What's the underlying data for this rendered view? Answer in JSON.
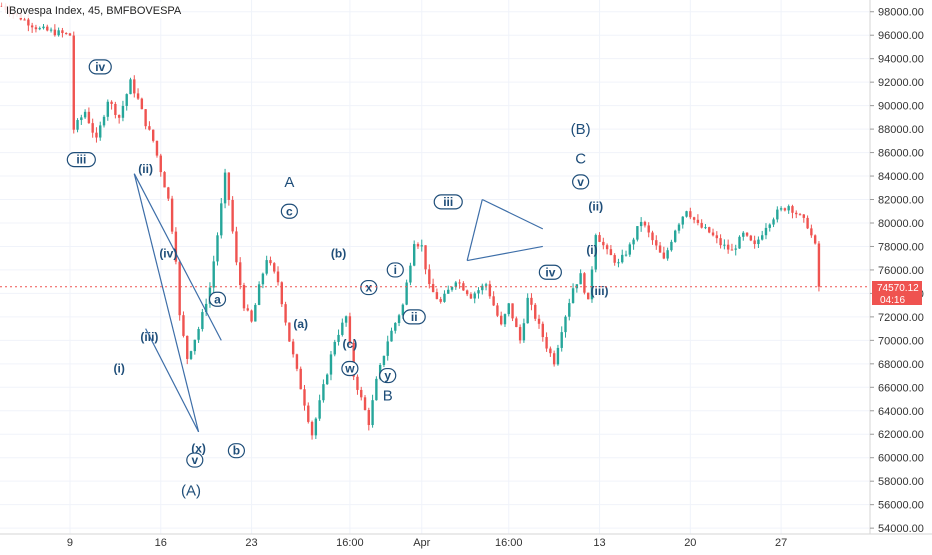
{
  "header": {
    "title": "IBovespa Index, 45, BMFBOVESPA"
  },
  "price_badge": {
    "price": "74570.12",
    "countdown": "04:16"
  },
  "colors": {
    "up": "#26a69a",
    "down": "#ef5350",
    "wave": "#1f4e79",
    "line": "#3d6ea8",
    "price_line": "#ef5350"
  },
  "chart_data": {
    "type": "candlestick",
    "x_ticks": [
      "9",
      "16",
      "23",
      "16:00",
      "Apr",
      "16:00",
      "13",
      "20",
      "27"
    ],
    "x_tick_slots": [
      18,
      42,
      66,
      92,
      111,
      134,
      158,
      182,
      206
    ],
    "y_ticks": [
      98000,
      96000,
      94000,
      92000,
      90000,
      88000,
      86000,
      84000,
      82000,
      80000,
      78000,
      76000,
      74000,
      72000,
      70000,
      68000,
      66000,
      64000,
      62000,
      60000,
      58000,
      56000,
      54000
    ],
    "ylim": [
      53500,
      99000
    ],
    "slots": 230,
    "last_price": 74570.12,
    "path": [
      [
        0,
        98500
      ],
      [
        10,
        96500
      ],
      [
        18,
        96000
      ],
      [
        19,
        88000
      ],
      [
        22,
        89500
      ],
      [
        25,
        87000
      ],
      [
        28,
        90500
      ],
      [
        31,
        89000
      ],
      [
        34,
        92000
      ],
      [
        36,
        90500
      ],
      [
        38,
        88500
      ],
      [
        40,
        87000
      ],
      [
        42,
        84500
      ],
      [
        44,
        82000
      ],
      [
        46,
        77000
      ],
      [
        47,
        72000
      ],
      [
        49,
        68500
      ],
      [
        52,
        71000
      ],
      [
        55,
        74500
      ],
      [
        57,
        79000
      ],
      [
        59,
        84000
      ],
      [
        60,
        82000
      ],
      [
        62,
        76500
      ],
      [
        64,
        73000
      ],
      [
        66,
        71500
      ],
      [
        68,
        74500
      ],
      [
        70,
        77000
      ],
      [
        73,
        75000
      ],
      [
        76,
        70000
      ],
      [
        79,
        66000
      ],
      [
        82,
        62000
      ],
      [
        85,
        66000
      ],
      [
        88,
        70000
      ],
      [
        91,
        72000
      ],
      [
        93,
        67000
      ],
      [
        95,
        65000
      ],
      [
        97,
        63000
      ],
      [
        99,
        66500
      ],
      [
        102,
        70000
      ],
      [
        106,
        73000
      ],
      [
        109,
        78500
      ],
      [
        111,
        78000
      ],
      [
        113,
        74500
      ],
      [
        116,
        73200
      ],
      [
        120,
        75200
      ],
      [
        124,
        73800
      ],
      [
        128,
        74800
      ],
      [
        130,
        73000
      ],
      [
        132,
        71200
      ],
      [
        134,
        73000
      ],
      [
        137,
        70000
      ],
      [
        139,
        73500
      ],
      [
        141,
        72000
      ],
      [
        144,
        69500
      ],
      [
        146,
        68200
      ],
      [
        148,
        71000
      ],
      [
        151,
        74500
      ],
      [
        153,
        75500
      ],
      [
        155,
        73200
      ],
      [
        157,
        79200
      ],
      [
        160,
        77500
      ],
      [
        163,
        76500
      ],
      [
        166,
        78000
      ],
      [
        169,
        80200
      ],
      [
        172,
        78500
      ],
      [
        175,
        76800
      ],
      [
        178,
        79500
      ],
      [
        181,
        81200
      ],
      [
        184,
        79800
      ],
      [
        187,
        79200
      ],
      [
        190,
        78200
      ],
      [
        193,
        77600
      ],
      [
        196,
        79000
      ],
      [
        199,
        78000
      ],
      [
        202,
        79800
      ],
      [
        205,
        80900
      ],
      [
        208,
        81500
      ],
      [
        211,
        80500
      ],
      [
        213,
        79800
      ],
      [
        215,
        78000
      ],
      [
        216,
        74600
      ]
    ],
    "annotations": [
      {
        "label": "iv",
        "slot": 26,
        "value": 93300,
        "style": "circled"
      },
      {
        "label": "iii",
        "slot": 21,
        "value": 85400,
        "style": "circled"
      },
      {
        "label": "(ii)",
        "slot": 38,
        "value": 84600,
        "style": "text"
      },
      {
        "label": "(iv)",
        "slot": 44,
        "value": 77400,
        "style": "text"
      },
      {
        "label": "(iii)",
        "slot": 39,
        "value": 70300,
        "style": "text"
      },
      {
        "label": "(i)",
        "slot": 31,
        "value": 67600,
        "style": "text"
      },
      {
        "label": "(x)",
        "slot": 52,
        "value": 60800,
        "style": "text"
      },
      {
        "label": "v",
        "slot": 51,
        "value": 59800,
        "style": "circled"
      },
      {
        "label": "(A)",
        "slot": 50,
        "value": 57200,
        "style": "big"
      },
      {
        "label": "a",
        "slot": 57,
        "value": 73500,
        "style": "circled"
      },
      {
        "label": "b",
        "slot": 62,
        "value": 60600,
        "style": "circled"
      },
      {
        "label": "A",
        "slot": 76,
        "value": 83500,
        "style": "big"
      },
      {
        "label": "c",
        "slot": 76,
        "value": 81000,
        "style": "circled"
      },
      {
        "label": "(a)",
        "slot": 79,
        "value": 71400,
        "style": "text"
      },
      {
        "label": "(b)",
        "slot": 89,
        "value": 77400,
        "style": "text"
      },
      {
        "label": "(c)",
        "slot": 92,
        "value": 69700,
        "style": "text"
      },
      {
        "label": "w",
        "slot": 92,
        "value": 67600,
        "style": "circled"
      },
      {
        "label": "x",
        "slot": 97,
        "value": 74500,
        "style": "circled"
      },
      {
        "label": "i",
        "slot": 104,
        "value": 76000,
        "style": "circled"
      },
      {
        "label": "ii",
        "slot": 109,
        "value": 72000,
        "style": "circled"
      },
      {
        "label": "y",
        "slot": 102,
        "value": 67000,
        "style": "circled"
      },
      {
        "label": "B",
        "slot": 102,
        "value": 65300,
        "style": "big"
      },
      {
        "label": "iii",
        "slot": 118,
        "value": 81800,
        "style": "circled"
      },
      {
        "label": "iv",
        "slot": 145,
        "value": 75800,
        "style": "circled"
      },
      {
        "label": "(B)",
        "slot": 153,
        "value": 88000,
        "style": "big"
      },
      {
        "label": "C",
        "slot": 153,
        "value": 85500,
        "style": "big"
      },
      {
        "label": "v",
        "slot": 153,
        "value": 83500,
        "style": "circled"
      },
      {
        "label": "(ii)",
        "slot": 157,
        "value": 81400,
        "style": "text"
      },
      {
        "label": "(i)",
        "slot": 156,
        "value": 77700,
        "style": "text"
      },
      {
        "label": "(iii)",
        "slot": 158,
        "value": 74200,
        "style": "text"
      }
    ],
    "trend_lines": [
      [
        [
          35,
          84200
        ],
        [
          58,
          70000
        ]
      ],
      [
        [
          35,
          84200
        ],
        [
          52,
          62200
        ]
      ],
      [
        [
          38,
          71000
        ],
        [
          52,
          62200
        ]
      ],
      [
        [
          127,
          82000
        ],
        [
          143,
          79500
        ]
      ],
      [
        [
          123,
          76800
        ],
        [
          143,
          78000
        ]
      ],
      [
        [
          123,
          76800
        ],
        [
          127,
          82000
        ]
      ]
    ]
  }
}
